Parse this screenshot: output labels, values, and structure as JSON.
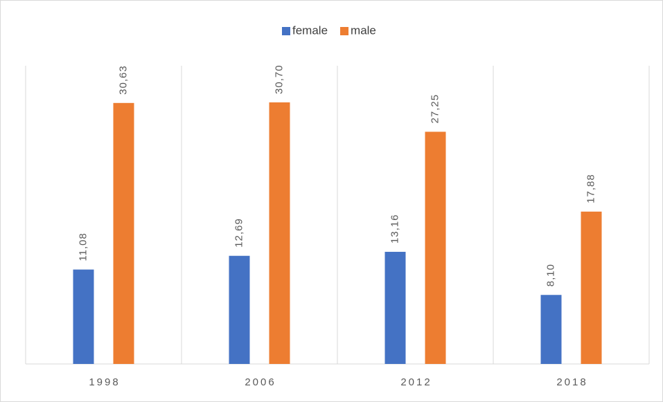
{
  "chart_data": {
    "type": "bar",
    "categories": [
      "1998",
      "2006",
      "2012",
      "2018"
    ],
    "series": [
      {
        "name": "female",
        "color": "#4472c4",
        "values": [
          11.08,
          12.69,
          13.16,
          8.1
        ],
        "value_labels": [
          "11,08",
          "12,69",
          "13,16",
          "8,10"
        ]
      },
      {
        "name": "male",
        "color": "#ed7d31",
        "values": [
          30.63,
          30.7,
          27.25,
          17.88
        ],
        "value_labels": [
          "30,63",
          "30,70",
          "27,25",
          "17,88"
        ]
      }
    ],
    "ylim": [
      0,
      35
    ],
    "legend": "top"
  }
}
